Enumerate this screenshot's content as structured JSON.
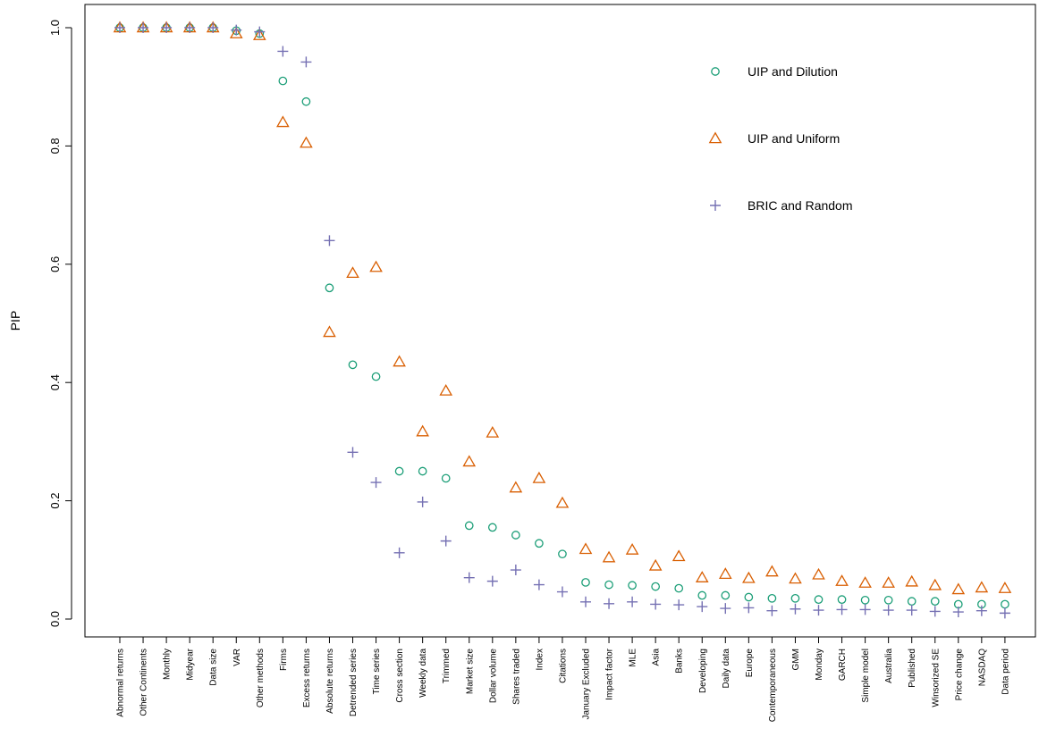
{
  "chart_data": {
    "type": "scatter",
    "title": "",
    "xlabel": "",
    "ylabel": "PIP",
    "ylim": [
      0,
      1
    ],
    "yticks": [
      "0.0",
      "0.2",
      "0.4",
      "0.6",
      "0.8",
      "1.0"
    ],
    "grid": false,
    "legend_position": "top-right",
    "categories": [
      "Abnormal returns",
      "Other Continents",
      "Monthly",
      "Midyear",
      "Data size",
      "VAR",
      "Other methods",
      "Firms",
      "Excess returns",
      "Absolute returns",
      "Detrended series",
      "Time series",
      "Cross section",
      "Weekly data",
      "Trimmed",
      "Market size",
      "Dollar volume",
      "Shares traded",
      "Index",
      "Citations",
      "January Excluded",
      "Impact factor",
      "MLE",
      "Asia",
      "Banks",
      "Developing",
      "Daily data",
      "Europe",
      "Contemporaneous",
      "GMM",
      "Monday",
      "GARCH",
      "Simple model",
      "Australia",
      "Published",
      "Winsorized SE",
      "Price change",
      "NASDAQ",
      "Data period"
    ],
    "series": [
      {
        "name": "UIP and Dilution",
        "marker": "circle",
        "color": "#1b9e77",
        "values": [
          1.0,
          1.0,
          1.0,
          1.0,
          1.0,
          0.995,
          0.99,
          0.91,
          0.875,
          0.56,
          0.43,
          0.41,
          0.25,
          0.25,
          0.238,
          0.158,
          0.155,
          0.142,
          0.128,
          0.11,
          0.062,
          0.058,
          0.057,
          0.055,
          0.052,
          0.04,
          0.04,
          0.037,
          0.035,
          0.035,
          0.033,
          0.033,
          0.032,
          0.032,
          0.03,
          0.03,
          0.025,
          0.025,
          0.025
        ]
      },
      {
        "name": "UIP and Uniform",
        "marker": "triangle",
        "color": "#d95f02",
        "values": [
          1.0,
          1.0,
          1.0,
          1.0,
          1.0,
          0.99,
          0.987,
          0.84,
          0.805,
          0.485,
          0.585,
          0.595,
          0.435,
          0.317,
          0.386,
          0.266,
          0.315,
          0.222,
          0.238,
          0.196,
          0.118,
          0.104,
          0.117,
          0.09,
          0.106,
          0.07,
          0.076,
          0.069,
          0.08,
          0.068,
          0.075,
          0.064,
          0.061,
          0.061,
          0.063,
          0.057,
          0.05,
          0.053,
          0.052
        ]
      },
      {
        "name": "BRIC and Random",
        "marker": "plus",
        "color": "#7570b3",
        "values": [
          1.0,
          1.0,
          1.0,
          1.0,
          1.0,
          0.996,
          0.993,
          0.96,
          0.942,
          0.64,
          0.282,
          0.231,
          0.112,
          0.198,
          0.132,
          0.07,
          0.064,
          0.083,
          0.058,
          0.046,
          0.029,
          0.026,
          0.029,
          0.025,
          0.024,
          0.021,
          0.018,
          0.019,
          0.014,
          0.017,
          0.015,
          0.016,
          0.016,
          0.015,
          0.015,
          0.013,
          0.012,
          0.014,
          0.01
        ]
      }
    ]
  }
}
